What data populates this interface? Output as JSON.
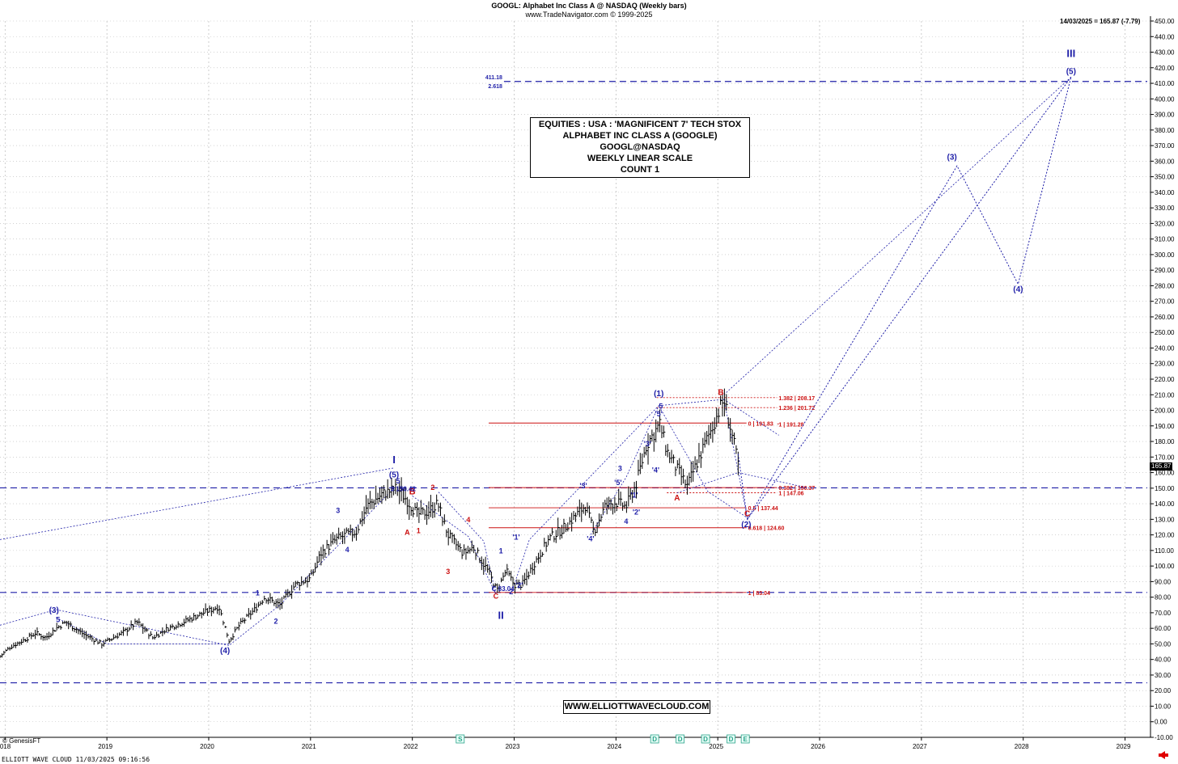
{
  "header": {
    "title": "GOOGL:  Alphabet Inc Class A @ NASDAQ  (Weekly bars)",
    "copyright": "www.TradeNavigator.com © 1999-2025"
  },
  "last_price_line": "14/03/2025 = 165.87 (-7.79)",
  "price_tag": "165.87",
  "info_box": {
    "line1": "EQUITIES : USA : 'MAGNIFICENT 7' TECH STOX",
    "line2": "ALPHABET INC CLASS A (GOOGLE)",
    "line3": "GOOGL@NASDAQ",
    "line4": "WEEKLY LINEAR SCALE",
    "line5": "COUNT 1"
  },
  "website": "WWW.ELLIOTTWAVECLOUD.COM",
  "footer": "ELLIOTT WAVE CLOUD   11/03/2025 09:16:56",
  "source_credit": "© GenesisFT",
  "colors": {
    "blue": "#1f1fa8",
    "red": "#cc1111",
    "bars": "#000000",
    "grid": "#b8b8b8"
  },
  "chart_data": {
    "type": "ohlc-bar",
    "ylim": [
      -10,
      450
    ],
    "xlim": [
      2017.95,
      2029.25
    ],
    "y_ticks": [
      -10,
      0,
      10,
      20,
      30,
      40,
      50,
      60,
      70,
      80,
      90,
      100,
      110,
      120,
      130,
      140,
      150,
      160,
      170,
      180,
      190,
      200,
      210,
      220,
      230,
      240,
      250,
      260,
      270,
      280,
      290,
      300,
      310,
      320,
      330,
      340,
      350,
      360,
      370,
      380,
      390,
      400,
      410,
      420,
      430,
      440,
      450
    ],
    "x_ticks": [
      "2018",
      "2019",
      "2020",
      "2021",
      "2022",
      "2023",
      "2024",
      "2025",
      "2026",
      "2027",
      "2028",
      "2029"
    ],
    "price_path": [
      [
        2017.95,
        42
      ],
      [
        2018.05,
        48
      ],
      [
        2018.2,
        53
      ],
      [
        2018.3,
        57
      ],
      [
        2018.4,
        54
      ],
      [
        2018.5,
        60
      ],
      [
        2018.6,
        64
      ],
      [
        2018.75,
        57
      ],
      [
        2018.95,
        50
      ],
      [
        2019.15,
        57
      ],
      [
        2019.3,
        64
      ],
      [
        2019.45,
        54
      ],
      [
        2019.6,
        60
      ],
      [
        2019.75,
        64
      ],
      [
        2019.95,
        70
      ],
      [
        2020.1,
        74
      ],
      [
        2020.2,
        52
      ],
      [
        2020.3,
        62
      ],
      [
        2020.45,
        72
      ],
      [
        2020.55,
        80
      ],
      [
        2020.7,
        75
      ],
      [
        2020.85,
        88
      ],
      [
        2021.0,
        92
      ],
      [
        2021.1,
        108
      ],
      [
        2021.25,
        117
      ],
      [
        2021.35,
        120
      ],
      [
        2021.45,
        122
      ],
      [
        2021.55,
        138
      ],
      [
        2021.7,
        146
      ],
      [
        2021.85,
        150
      ],
      [
        2021.95,
        142
      ],
      [
        2022.05,
        133
      ],
      [
        2022.15,
        135
      ],
      [
        2022.25,
        140
      ],
      [
        2022.35,
        120
      ],
      [
        2022.5,
        108
      ],
      [
        2022.6,
        112
      ],
      [
        2022.75,
        96
      ],
      [
        2022.83,
        84
      ],
      [
        2022.92,
        97
      ],
      [
        2023.0,
        88
      ],
      [
        2023.08,
        88
      ],
      [
        2023.2,
        102
      ],
      [
        2023.35,
        118
      ],
      [
        2023.5,
        125
      ],
      [
        2023.6,
        132
      ],
      [
        2023.7,
        139
      ],
      [
        2023.78,
        122
      ],
      [
        2023.9,
        139
      ],
      [
        2024.0,
        141
      ],
      [
        2024.1,
        138
      ],
      [
        2024.2,
        153
      ],
      [
        2024.3,
        178
      ],
      [
        2024.43,
        191
      ],
      [
        2024.5,
        174
      ],
      [
        2024.6,
        162
      ],
      [
        2024.7,
        151
      ],
      [
        2024.8,
        167
      ],
      [
        2024.95,
        190
      ],
      [
        2025.0,
        198
      ],
      [
        2025.06,
        207
      ],
      [
        2025.12,
        190
      ],
      [
        2025.2,
        165.87
      ]
    ],
    "last": {
      "date": "14/03/2025",
      "close": 165.87,
      "change": -7.79
    },
    "fib_levels": [
      {
        "label": "1.382 | 208.17",
        "price": 208.17,
        "x0": 2024.4,
        "x1": 2025.9
      },
      {
        "label": "1.236 | 201.72",
        "price": 201.72,
        "x0": 2024.4,
        "x1": 2025.9
      },
      {
        "label": "0 | 191.83",
        "price": 191.83,
        "x0": 2022.75,
        "x1": 2025.6
      },
      {
        "label": "1 | 191.28",
        "price": 191.28,
        "x0": 2025.6,
        "x1": 2025.9
      },
      {
        "label": "0.382 | 150.37",
        "price": 150.37,
        "x0": 2022.75,
        "x1": 2025.9
      },
      {
        "label": "1 | 147.06",
        "price": 147.06,
        "x0": 2024.5,
        "x1": 2025.9
      },
      {
        "label": "0.5 | 137.44",
        "price": 137.44,
        "x0": 2022.75,
        "x1": 2025.6
      },
      {
        "label": "0.618 | 124.60",
        "price": 124.6,
        "x0": 2022.75,
        "x1": 2025.6
      },
      {
        "label": "1 | 83.04",
        "price": 83.04,
        "x0": 2022.75,
        "x1": 2025.6
      }
    ],
    "target_level": {
      "price": 411.18,
      "ratio": "2.618",
      "price_label": "411.18"
    },
    "dashed_levels": [
      {
        "price": 150.2
      },
      {
        "price": 83.04
      },
      {
        "price": 25
      }
    ],
    "wave_labels": [
      {
        "t": "I",
        "x": 2021.82,
        "y": 166,
        "c": "blue",
        "size": 13
      },
      {
        "t": "(5)",
        "x": 2021.82,
        "y": 157,
        "c": "blue",
        "size": 10
      },
      {
        "t": "5",
        "x": 2021.86,
        "y": 153,
        "c": "blue",
        "size": 9
      },
      {
        "t": "B",
        "x": 2022.0,
        "y": 146,
        "c": "red",
        "size": 11
      },
      {
        "t": "2",
        "x": 2022.2,
        "y": 149,
        "c": "red",
        "size": 9
      },
      {
        "t": "A",
        "x": 2021.95,
        "y": 120,
        "c": "red",
        "size": 9
      },
      {
        "t": "1",
        "x": 2022.06,
        "y": 121,
        "c": "red",
        "size": 9
      },
      {
        "t": "4",
        "x": 2022.55,
        "y": 128,
        "c": "red",
        "size": 9
      },
      {
        "t": "3",
        "x": 2022.35,
        "y": 95,
        "c": "red",
        "size": 9
      },
      {
        "t": "II",
        "x": 2022.87,
        "y": 66,
        "c": "blue",
        "size": 13
      },
      {
        "t": "C",
        "x": 2022.82,
        "y": 79,
        "c": "red",
        "size": 9
      },
      {
        "t": "C 83.04",
        "x": 2022.89,
        "y": 84,
        "c": "blue",
        "size": 8
      },
      {
        "t": "1",
        "x": 2022.87,
        "y": 108,
        "c": "blue",
        "size": 9
      },
      {
        "t": "'1'",
        "x": 2023.02,
        "y": 117,
        "c": "blue",
        "size": 9
      },
      {
        "t": "'2'",
        "x": 2023.05,
        "y": 86,
        "c": "blue",
        "size": 9
      },
      {
        "t": "2",
        "x": 2022.97,
        "y": 82,
        "c": "blue",
        "size": 9
      },
      {
        "t": "'3'",
        "x": 2023.68,
        "y": 150,
        "c": "blue",
        "size": 9
      },
      {
        "t": "'4'",
        "x": 2023.75,
        "y": 116,
        "c": "blue",
        "size": 9
      },
      {
        "t": "3",
        "x": 2024.04,
        "y": 161,
        "c": "blue",
        "size": 9
      },
      {
        "t": "'5'",
        "x": 2024.02,
        "y": 152,
        "c": "blue",
        "size": 9
      },
      {
        "t": "4",
        "x": 2024.1,
        "y": 127,
        "c": "blue",
        "size": 9
      },
      {
        "t": "'1'",
        "x": 2024.18,
        "y": 144,
        "c": "blue",
        "size": 9
      },
      {
        "t": "'2'",
        "x": 2024.2,
        "y": 133,
        "c": "blue",
        "size": 9
      },
      {
        "t": "'3'",
        "x": 2024.31,
        "y": 177,
        "c": "blue",
        "size": 9
      },
      {
        "t": "'4'",
        "x": 2024.39,
        "y": 160,
        "c": "blue",
        "size": 9
      },
      {
        "t": "'5'",
        "x": 2024.42,
        "y": 196,
        "c": "blue",
        "size": 9
      },
      {
        "t": "5",
        "x": 2024.44,
        "y": 201,
        "c": "blue",
        "size": 9
      },
      {
        "t": "(1)",
        "x": 2024.42,
        "y": 209,
        "c": "blue",
        "size": 10
      },
      {
        "t": "A",
        "x": 2024.6,
        "y": 142,
        "c": "red",
        "size": 10
      },
      {
        "t": "B",
        "x": 2025.03,
        "y": 210,
        "c": "red",
        "size": 10
      },
      {
        "t": "C",
        "x": 2025.29,
        "y": 132,
        "c": "red",
        "size": 10
      },
      {
        "t": "(2)",
        "x": 2025.28,
        "y": 125,
        "c": "blue",
        "size": 10
      },
      {
        "t": "(3)",
        "x": 2027.3,
        "y": 361,
        "c": "blue",
        "size": 10
      },
      {
        "t": "(4)",
        "x": 2027.95,
        "y": 276,
        "c": "blue",
        "size": 10
      },
      {
        "t": "(5)",
        "x": 2028.47,
        "y": 416,
        "c": "blue",
        "size": 10
      },
      {
        "t": "III",
        "x": 2028.47,
        "y": 427,
        "c": "blue",
        "size": 13
      },
      {
        "t": "(3)",
        "x": 2018.48,
        "y": 70,
        "c": "blue",
        "size": 10
      },
      {
        "t": "5",
        "x": 2018.52,
        "y": 64,
        "c": "blue",
        "size": 9
      },
      {
        "t": "(4)",
        "x": 2020.16,
        "y": 44,
        "c": "blue",
        "size": 10
      },
      {
        "t": "1",
        "x": 2020.48,
        "y": 81,
        "c": "blue",
        "size": 9
      },
      {
        "t": "2",
        "x": 2020.66,
        "y": 63,
        "c": "blue",
        "size": 9
      },
      {
        "t": "3",
        "x": 2021.27,
        "y": 134,
        "c": "blue",
        "size": 9
      },
      {
        "t": "4",
        "x": 2021.36,
        "y": 109,
        "c": "blue",
        "size": 9
      },
      {
        "t": "3 150.42",
        "x": 2021.91,
        "y": 148,
        "c": "blue",
        "size": 8
      }
    ],
    "projection_paths": [
      [
        [
          2025.2,
          172
        ],
        [
          2025.29,
          130
        ],
        [
          2027.35,
          357
        ],
        [
          2027.95,
          281
        ],
        [
          2028.47,
          414
        ]
      ],
      [
        [
          2025.29,
          130
        ],
        [
          2028.47,
          414
        ]
      ]
    ],
    "channel_lines": [
      [
        [
          2017.95,
          117
        ],
        [
          2021.82,
          163
        ]
      ],
      [
        [
          2017.95,
          62
        ],
        [
          2018.5,
          72
        ],
        [
          2020.2,
          49
        ],
        [
          2020.7,
          75
        ],
        [
          2021.82,
          150
        ]
      ],
      [
        [
          2018.5,
          67
        ],
        [
          2019.0,
          50
        ],
        [
          2020.2,
          50
        ]
      ],
      [
        [
          2022.0,
          145
        ],
        [
          2022.55,
          119
        ],
        [
          2022.82,
          82
        ],
        [
          2022.7,
          116
        ],
        [
          2022.25,
          148
        ]
      ],
      [
        [
          2023.0,
          88
        ],
        [
          2023.15,
          117
        ],
        [
          2024.42,
          203
        ],
        [
          2024.1,
          157
        ],
        [
          2023.75,
          120
        ]
      ],
      [
        [
          2024.6,
          147
        ],
        [
          2025.2,
          160
        ],
        [
          2025.9,
          150
        ]
      ],
      [
        [
          2025.06,
          207
        ],
        [
          2025.6,
          184
        ]
      ],
      [
        [
          2024.42,
          203
        ],
        [
          2025.06,
          207
        ],
        [
          2025.29,
          131
        ],
        [
          2024.9,
          148
        ],
        [
          2024.42,
          203
        ]
      ],
      [
        [
          2025.06,
          210
        ],
        [
          2028.47,
          414
        ]
      ]
    ],
    "event_markers": [
      {
        "t": "S",
        "x": 2022.47
      },
      {
        "t": "D",
        "x": 2024.38
      },
      {
        "t": "D",
        "x": 2024.63
      },
      {
        "t": "D",
        "x": 2024.88
      },
      {
        "t": "D",
        "x": 2025.13
      },
      {
        "t": "E",
        "x": 2025.27
      }
    ]
  }
}
